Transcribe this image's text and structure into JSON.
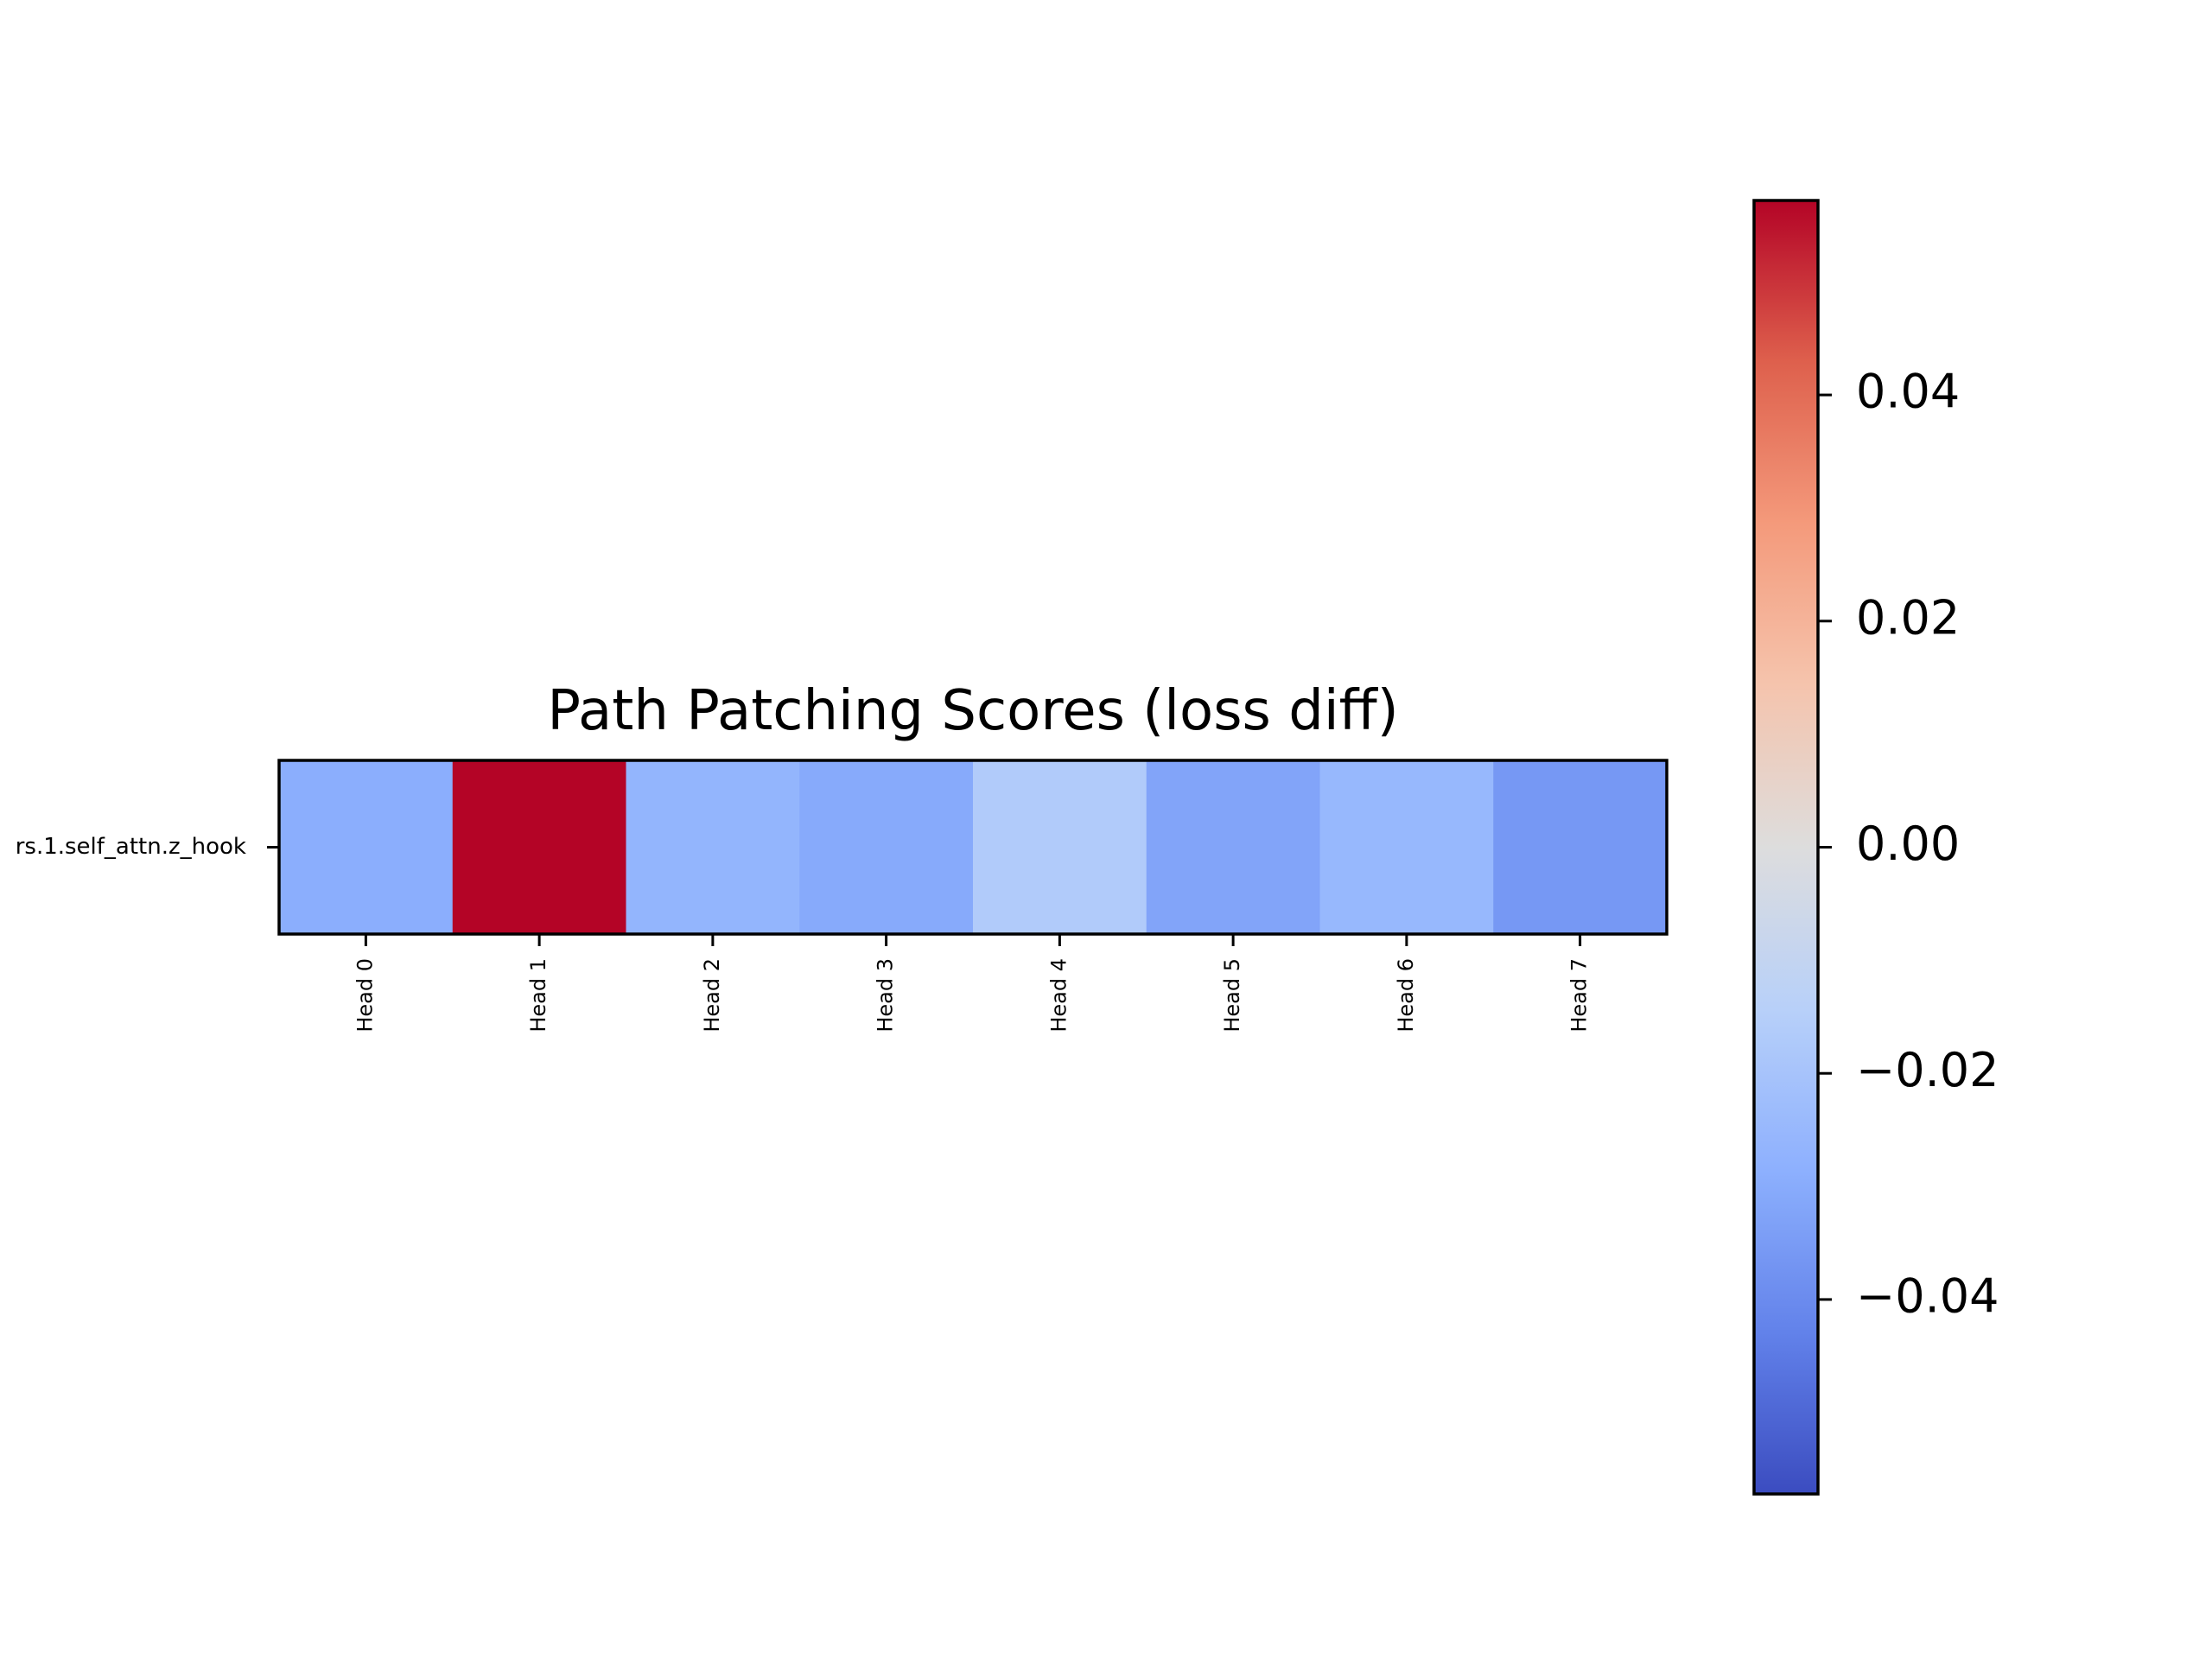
{
  "chart_data": {
    "type": "heatmap",
    "title": "Path Patching Scores (loss diff)",
    "row_labels": [
      "rs.1.self_attn.z_hook"
    ],
    "column_labels": [
      "Head 0",
      "Head 1",
      "Head 2",
      "Head 3",
      "Head 4",
      "Head 5",
      "Head 6",
      "Head 7"
    ],
    "values": [
      [
        -0.0293,
        0.0572,
        -0.0265,
        -0.0305,
        -0.0167,
        -0.0322,
        -0.0252,
        -0.0361
      ]
    ],
    "colormap": "coolwarm",
    "vmin": -0.0572,
    "vmax": 0.0572,
    "colorbar": {
      "ticks": [
        -0.04,
        -0.02,
        0.0,
        0.02,
        0.04
      ],
      "tick_labels": [
        "−0.04",
        "−0.02",
        "0.00",
        "0.02",
        "0.04"
      ]
    }
  }
}
